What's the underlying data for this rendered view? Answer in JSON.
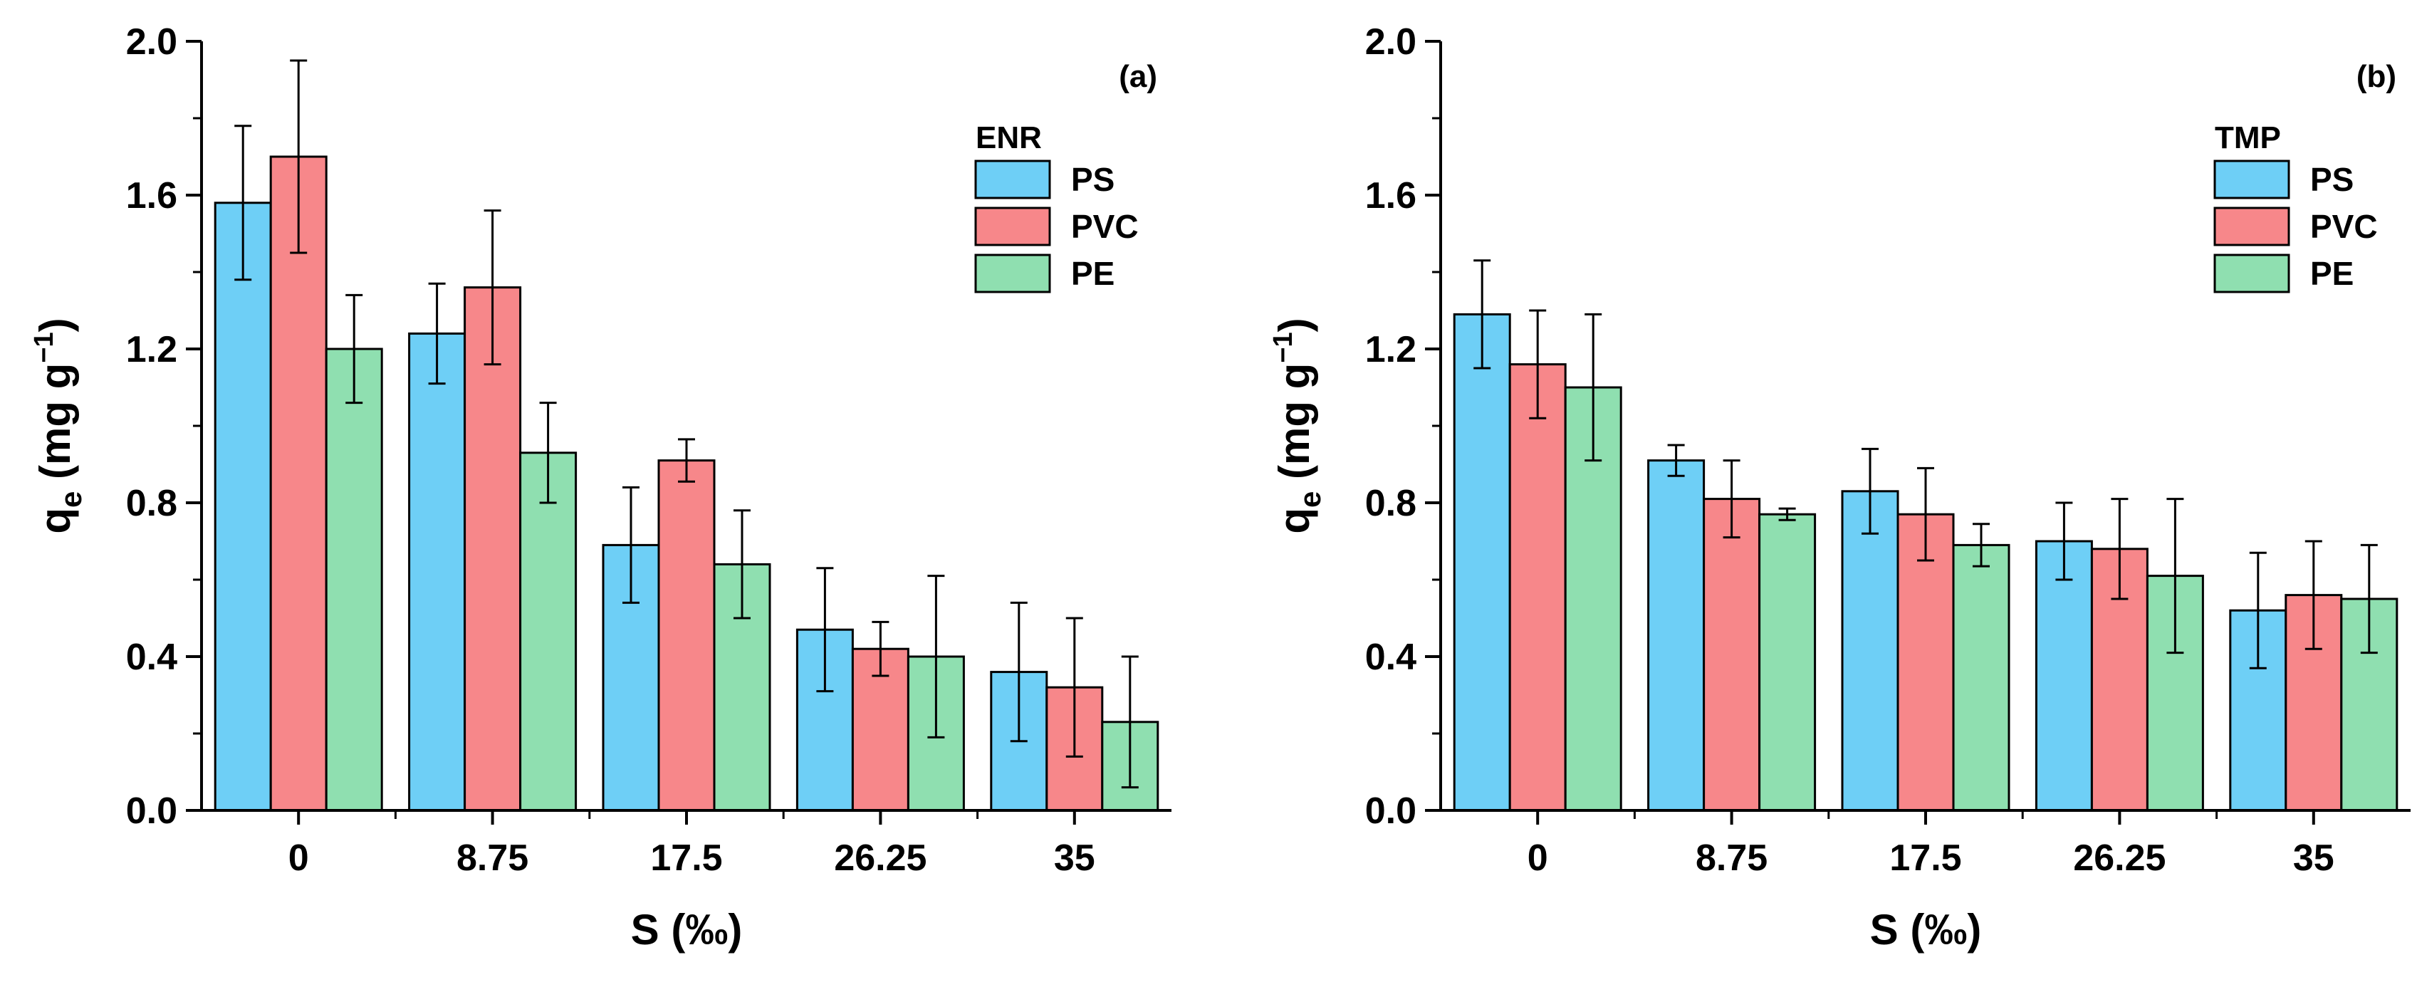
{
  "chart_data": [
    {
      "type": "bar",
      "panel_label": "(a)",
      "legend_title": "ENR",
      "legend_position": "top-right",
      "xlabel": "S (‰)",
      "ylabel_main": "q",
      "ylabel_sub": "e",
      "ylabel_units": "(mg g",
      "ylabel_exp": "−1",
      "ylabel_close": ")",
      "ylim": [
        0,
        2.0
      ],
      "yticks": [
        "0.0",
        "0.4",
        "0.8",
        "1.2",
        "1.6",
        "2.0"
      ],
      "categories": [
        "0",
        "8.75",
        "17.5",
        "26.25",
        "35"
      ],
      "series": [
        {
          "name": "PS",
          "color": "#6ecff6",
          "values": [
            1.58,
            1.24,
            0.69,
            0.47,
            0.36
          ],
          "errors": [
            0.2,
            0.13,
            0.15,
            0.16,
            0.18
          ]
        },
        {
          "name": "PVC",
          "color": "#f7878a",
          "values": [
            1.7,
            1.36,
            0.91,
            0.42,
            0.32
          ],
          "errors": [
            0.25,
            0.2,
            0.055,
            0.07,
            0.18
          ]
        },
        {
          "name": "PE",
          "color": "#8fdfb0",
          "values": [
            1.2,
            0.93,
            0.64,
            0.4,
            0.23
          ],
          "errors": [
            0.14,
            0.13,
            0.14,
            0.21,
            0.17
          ]
        }
      ]
    },
    {
      "type": "bar",
      "panel_label": "(b)",
      "legend_title": "TMP",
      "legend_position": "top-right",
      "xlabel": "S (‰)",
      "ylabel_main": "q",
      "ylabel_sub": "e",
      "ylabel_units": "(mg g",
      "ylabel_exp": "−1",
      "ylabel_close": ")",
      "ylim": [
        0,
        2.0
      ],
      "yticks": [
        "0.0",
        "0.4",
        "0.8",
        "1.2",
        "1.6",
        "2.0"
      ],
      "categories": [
        "0",
        "8.75",
        "17.5",
        "26.25",
        "35"
      ],
      "series": [
        {
          "name": "PS",
          "color": "#6ecff6",
          "values": [
            1.29,
            0.91,
            0.83,
            0.7,
            0.52
          ],
          "errors": [
            0.14,
            0.04,
            0.11,
            0.1,
            0.15
          ]
        },
        {
          "name": "PVC",
          "color": "#f7878a",
          "values": [
            1.16,
            0.81,
            0.77,
            0.68,
            0.56
          ],
          "errors": [
            0.14,
            0.1,
            0.12,
            0.13,
            0.14
          ]
        },
        {
          "name": "PE",
          "color": "#8fdfb0",
          "values": [
            1.1,
            0.77,
            0.69,
            0.61,
            0.55
          ],
          "errors": [
            0.19,
            0.015,
            0.055,
            0.2,
            0.14
          ]
        }
      ]
    }
  ]
}
